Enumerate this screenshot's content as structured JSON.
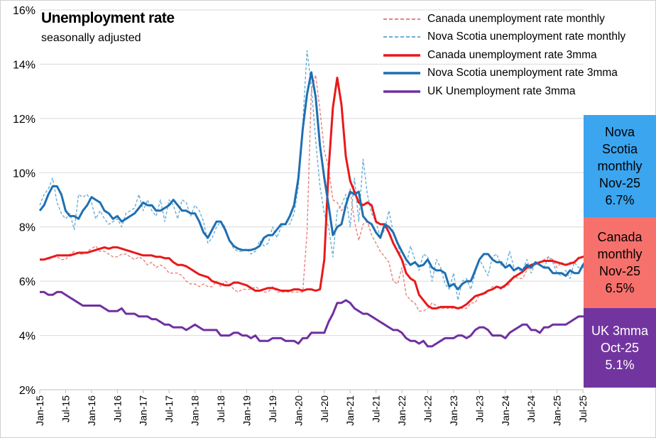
{
  "chart_data": {
    "type": "line",
    "title": "Unemployment rate",
    "subtitle": "seasonally adjusted",
    "ylim": [
      2,
      16
    ],
    "y_ticks": [
      "2%",
      "4%",
      "6%",
      "8%",
      "10%",
      "12%",
      "14%",
      "16%"
    ],
    "y_tick_values": [
      2,
      4,
      6,
      8,
      10,
      12,
      14,
      16
    ],
    "x_tick_labels": [
      "Jan-15",
      "Jul-15",
      "Jan-16",
      "Jul-16",
      "Jan-17",
      "Jul-17",
      "Jan-18",
      "Jul-18",
      "Jan-19",
      "Jul-19",
      "Jan-20",
      "Jul-20",
      "Jan-21",
      "Jul-21",
      "Jan-22",
      "Jul-22",
      "Jan-23",
      "Jul-23",
      "Jan-24",
      "Jul-24",
      "Jan-25",
      "Jul-25"
    ],
    "x_start": "Jan-15",
    "x_end": "Nov-25",
    "grid": "horizontal",
    "legend_position": "top-right",
    "series": [
      {
        "name": "Canada unemployment rate monthly",
        "color": "#e8837e",
        "style": "dashed",
        "start": "Jan-15",
        "values": [
          6.8,
          6.8,
          6.8,
          6.9,
          6.9,
          6.8,
          6.8,
          7.0,
          7.1,
          7.0,
          7.0,
          7.1,
          7.2,
          7.3,
          7.1,
          7.1,
          7.0,
          6.9,
          6.9,
          7.0,
          7.0,
          6.9,
          6.8,
          6.9,
          6.8,
          6.6,
          6.7,
          6.5,
          6.6,
          6.5,
          6.3,
          6.3,
          6.3,
          6.2,
          6.0,
          5.9,
          5.9,
          5.8,
          5.9,
          5.8,
          5.8,
          6.0,
          5.8,
          6.0,
          5.9,
          5.7,
          5.6,
          5.7,
          5.7,
          5.7,
          5.8,
          5.7,
          5.6,
          5.6,
          5.8,
          5.6,
          5.6,
          5.6,
          5.6,
          5.6,
          5.6,
          5.6,
          7.8,
          13.0,
          13.6,
          12.3,
          10.8,
          10.2,
          9.0,
          8.9,
          8.6,
          8.8,
          9.4,
          8.2,
          7.5,
          8.1,
          8.2,
          7.7,
          7.4,
          7.1,
          6.9,
          6.7,
          6.0,
          5.9,
          6.5,
          5.5,
          5.3,
          5.2,
          4.9,
          4.9,
          5.0,
          5.2,
          5.1,
          5.0,
          5.0,
          5.0,
          5.0,
          5.0,
          5.0,
          5.0,
          5.2,
          5.2,
          5.5,
          5.5,
          5.6,
          5.8,
          5.8,
          5.7,
          5.8,
          5.9,
          6.2,
          6.1,
          6.1,
          6.4,
          6.6,
          6.6,
          6.7,
          6.8,
          6.9,
          6.8,
          6.5,
          6.7,
          6.6,
          6.7,
          6.7,
          6.9,
          6.9,
          7.0,
          7.1,
          7.1,
          6.9,
          6.5
        ]
      },
      {
        "name": "Nova Scotia unemployment rate monthly",
        "color": "#6baed6",
        "style": "dashed",
        "start": "Jan-15",
        "values": [
          8.8,
          9.2,
          9.4,
          9.8,
          8.9,
          8.5,
          8.3,
          8.5,
          7.9,
          9.2,
          9.1,
          9.2,
          8.9,
          8.3,
          8.6,
          8.3,
          8.1,
          8.2,
          8.3,
          8.0,
          8.5,
          8.6,
          8.7,
          9.2,
          8.6,
          9.0,
          8.6,
          8.4,
          9.0,
          8.2,
          9.0,
          8.8,
          8.3,
          9.0,
          8.9,
          8.4,
          8.8,
          8.6,
          8.2,
          7.4,
          7.6,
          8.0,
          8.2,
          8.0,
          7.5,
          7.2,
          7.1,
          7.1,
          7.2,
          7.0,
          7.1,
          7.5,
          7.3,
          7.4,
          8.0,
          7.6,
          8.0,
          8.1,
          8.1,
          8.5,
          9.5,
          11.8,
          14.5,
          13.2,
          11.2,
          9.5,
          8.5,
          8.0,
          6.9,
          8.6,
          8.8,
          9.2,
          8.0,
          9.8,
          8.2,
          10.5,
          9.2,
          8.5,
          8.2,
          7.6,
          7.9,
          8.6,
          7.8,
          7.4,
          6.8,
          6.6,
          7.3,
          6.8,
          6.4,
          7.0,
          6.9,
          6.0,
          6.8,
          6.5,
          5.9,
          5.7,
          6.3,
          5.3,
          6.0,
          6.1,
          5.7,
          6.3,
          6.8,
          6.5,
          6.2,
          6.9,
          7.0,
          6.6,
          6.5,
          7.1,
          6.5,
          6.4,
          6.4,
          6.8,
          6.3,
          6.7,
          6.6,
          6.5,
          6.9,
          6.7,
          6.3,
          6.2,
          6.4,
          6.1,
          6.7,
          6.5,
          6.5,
          7.2,
          6.6,
          6.7,
          6.9,
          6.3,
          6.7
        ]
      },
      {
        "name": "Canada unemployment rate 3mma",
        "color": "#e8191a",
        "style": "solid",
        "start": "Jan-15",
        "values": [
          6.8,
          6.8,
          6.85,
          6.9,
          6.95,
          6.95,
          6.95,
          6.95,
          7.0,
          7.05,
          7.05,
          7.05,
          7.1,
          7.15,
          7.2,
          7.25,
          7.2,
          7.25,
          7.25,
          7.2,
          7.15,
          7.1,
          7.05,
          7.0,
          6.95,
          6.95,
          6.95,
          6.9,
          6.9,
          6.85,
          6.85,
          6.7,
          6.6,
          6.6,
          6.55,
          6.45,
          6.35,
          6.25,
          6.2,
          6.15,
          6.0,
          5.95,
          5.9,
          5.85,
          5.85,
          5.95,
          5.95,
          5.9,
          5.85,
          5.75,
          5.65,
          5.65,
          5.7,
          5.75,
          5.75,
          5.7,
          5.65,
          5.65,
          5.65,
          5.7,
          5.7,
          5.65,
          5.7,
          5.7,
          5.65,
          5.7,
          6.8,
          10.1,
          12.4,
          13.5,
          12.5,
          10.6,
          9.7,
          9.3,
          8.9,
          8.8,
          8.9,
          8.8,
          8.2,
          8.1,
          8.1,
          7.8,
          7.4,
          7.1,
          6.8,
          6.3,
          6.1,
          6.0,
          5.5,
          5.3,
          5.1,
          5.0,
          5.0,
          5.05,
          5.05,
          5.05,
          5.05,
          5.0,
          5.05,
          5.15,
          5.3,
          5.45,
          5.5,
          5.55,
          5.65,
          5.7,
          5.8,
          5.75,
          5.85,
          6.0,
          6.15,
          6.25,
          6.35,
          6.5,
          6.6,
          6.65,
          6.7,
          6.75,
          6.75,
          6.75,
          6.7,
          6.65,
          6.6,
          6.65,
          6.7,
          6.85,
          6.9,
          6.95,
          7.05,
          7.05,
          7.0,
          6.85
        ]
      },
      {
        "name": "Nova Scotia unemployment rate 3mma",
        "color": "#1f6fb2",
        "style": "solid",
        "start": "Jan-15",
        "values": [
          8.6,
          8.8,
          9.2,
          9.5,
          9.5,
          9.2,
          8.6,
          8.4,
          8.4,
          8.3,
          8.6,
          8.8,
          9.1,
          9.0,
          8.9,
          8.6,
          8.5,
          8.3,
          8.4,
          8.2,
          8.3,
          8.4,
          8.5,
          8.7,
          8.9,
          8.8,
          8.8,
          8.6,
          8.6,
          8.7,
          8.8,
          9.0,
          8.8,
          8.6,
          8.6,
          8.5,
          8.5,
          8.2,
          7.8,
          7.6,
          7.9,
          8.2,
          8.2,
          7.9,
          7.5,
          7.3,
          7.2,
          7.15,
          7.15,
          7.15,
          7.2,
          7.3,
          7.6,
          7.7,
          7.7,
          7.9,
          8.1,
          8.1,
          8.4,
          8.8,
          9.8,
          11.6,
          12.9,
          13.7,
          12.8,
          11.0,
          9.8,
          8.8,
          7.7,
          8.0,
          8.1,
          8.8,
          9.3,
          9.2,
          9.3,
          8.4,
          8.2,
          8.1,
          7.8,
          7.6,
          8.1,
          8.0,
          7.8,
          7.4,
          7.1,
          6.8,
          6.6,
          6.7,
          6.55,
          6.6,
          6.8,
          6.5,
          6.4,
          6.4,
          6.3,
          5.8,
          5.9,
          5.7,
          5.9,
          6.0,
          6.0,
          6.4,
          6.8,
          7.0,
          7.0,
          6.8,
          6.7,
          6.7,
          6.5,
          6.6,
          6.4,
          6.5,
          6.4,
          6.6,
          6.5,
          6.7,
          6.6,
          6.5,
          6.5,
          6.3,
          6.3,
          6.3,
          6.2,
          6.4,
          6.3,
          6.3,
          6.6,
          6.8,
          6.7,
          6.7,
          6.5,
          6.5,
          6.55
        ]
      },
      {
        "name": "UK Unemployment rate 3mma",
        "color": "#7030a0",
        "style": "solid",
        "start": "Jan-15",
        "values": [
          5.6,
          5.6,
          5.5,
          5.5,
          5.6,
          5.6,
          5.5,
          5.4,
          5.3,
          5.2,
          5.1,
          5.1,
          5.1,
          5.1,
          5.1,
          5.0,
          4.9,
          4.9,
          4.9,
          5.0,
          4.8,
          4.8,
          4.8,
          4.7,
          4.7,
          4.7,
          4.6,
          4.6,
          4.5,
          4.4,
          4.4,
          4.3,
          4.3,
          4.3,
          4.2,
          4.3,
          4.4,
          4.3,
          4.2,
          4.2,
          4.2,
          4.2,
          4.0,
          4.0,
          4.0,
          4.1,
          4.1,
          4.0,
          4.0,
          3.9,
          4.0,
          3.8,
          3.8,
          3.8,
          3.9,
          3.9,
          3.9,
          3.8,
          3.8,
          3.8,
          3.7,
          3.9,
          3.9,
          4.1,
          4.1,
          4.1,
          4.1,
          4.5,
          4.8,
          5.2,
          5.2,
          5.3,
          5.2,
          5.0,
          4.9,
          4.8,
          4.8,
          4.7,
          4.6,
          4.5,
          4.4,
          4.3,
          4.2,
          4.2,
          4.1,
          3.9,
          3.8,
          3.8,
          3.7,
          3.8,
          3.6,
          3.6,
          3.7,
          3.8,
          3.9,
          3.9,
          3.9,
          4.0,
          4.0,
          3.9,
          4.0,
          4.2,
          4.3,
          4.3,
          4.2,
          4.0,
          4.0,
          4.0,
          3.9,
          4.1,
          4.2,
          4.3,
          4.4,
          4.4,
          4.2,
          4.2,
          4.1,
          4.3,
          4.3,
          4.4,
          4.4,
          4.4,
          4.4,
          4.5,
          4.6,
          4.7,
          4.7,
          4.7,
          4.8,
          5.0,
          5.1
        ]
      }
    ]
  },
  "boxes": {
    "nova_scotia": {
      "line1": "Nova",
      "line2": "Scotia",
      "line3": "monthly",
      "line4": "Nov-25",
      "line5": "6.7%"
    },
    "canada": {
      "line1": "Canada",
      "line2": "monthly",
      "line3": "Nov-25",
      "line4": "6.5%"
    },
    "uk": {
      "line1": "UK 3mma",
      "line2": "Oct-25",
      "line3": "5.1%"
    }
  }
}
